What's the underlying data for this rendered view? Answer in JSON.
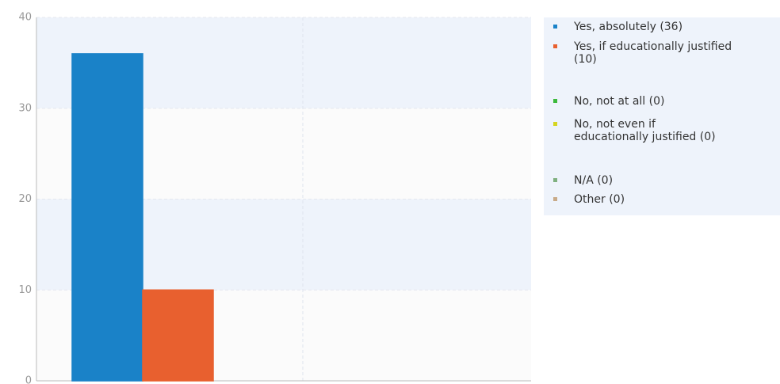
{
  "chart_data": {
    "type": "bar",
    "series": [
      {
        "name": "Yes, absolutely (36)",
        "color": "#1a82c8",
        "values": [
          36
        ]
      },
      {
        "name": "Yes, if educationally justified (10)",
        "color": "#e8602f",
        "values": [
          10
        ]
      },
      {
        "name": "No, not at all (0)",
        "color": "#3cb93c",
        "values": [
          0
        ]
      },
      {
        "name": "No, not even if educationally justified (0)",
        "color": "#d5d520",
        "values": [
          0
        ]
      },
      {
        "name": "N/A (0)",
        "color": "#7fb07f",
        "values": [
          0
        ]
      },
      {
        "name": "Other (0)",
        "color": "#c8aa88",
        "values": [
          0
        ]
      }
    ],
    "ylim": [
      0,
      40
    ],
    "yticks": [
      0,
      10,
      20,
      30,
      40
    ],
    "grid": true,
    "legend": "right"
  }
}
